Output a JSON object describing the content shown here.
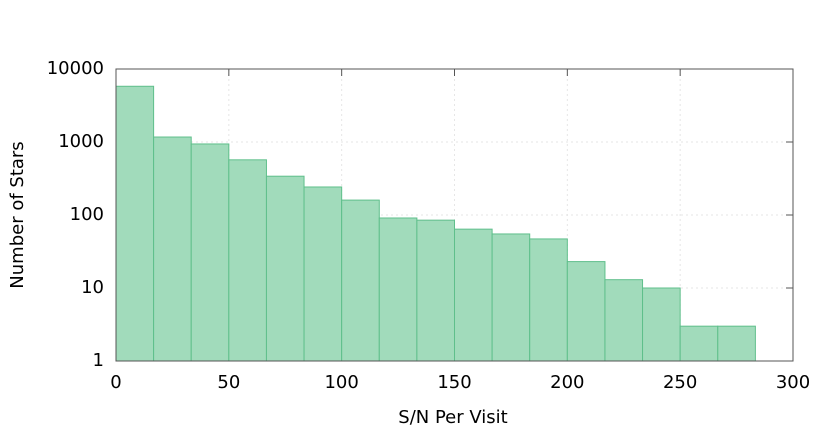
{
  "chart_data": {
    "type": "histogram",
    "xlabel": "S/N Per Visit",
    "ylabel": "Number of Stars",
    "bins": [
      0,
      16.67,
      33.33,
      50,
      66.67,
      83.33,
      100,
      116.67,
      133.33,
      150,
      166.67,
      183.33,
      200,
      216.67,
      233.33,
      250,
      266.67,
      283.33
    ],
    "counts": [
      5800,
      1170,
      940,
      570,
      340,
      242,
      160,
      91,
      85,
      64,
      55,
      47,
      23,
      13,
      10,
      3,
      3
    ],
    "color": "#a1dbbb",
    "edgecolor": "#5fbf8b",
    "xlim": [
      0,
      300
    ],
    "xticks": [
      0,
      50,
      100,
      150,
      200,
      250,
      300
    ],
    "ylim": [
      1,
      10000
    ],
    "yticks": [
      1,
      10,
      100,
      1000,
      10000
    ],
    "yscale": "log",
    "grid": true
  }
}
